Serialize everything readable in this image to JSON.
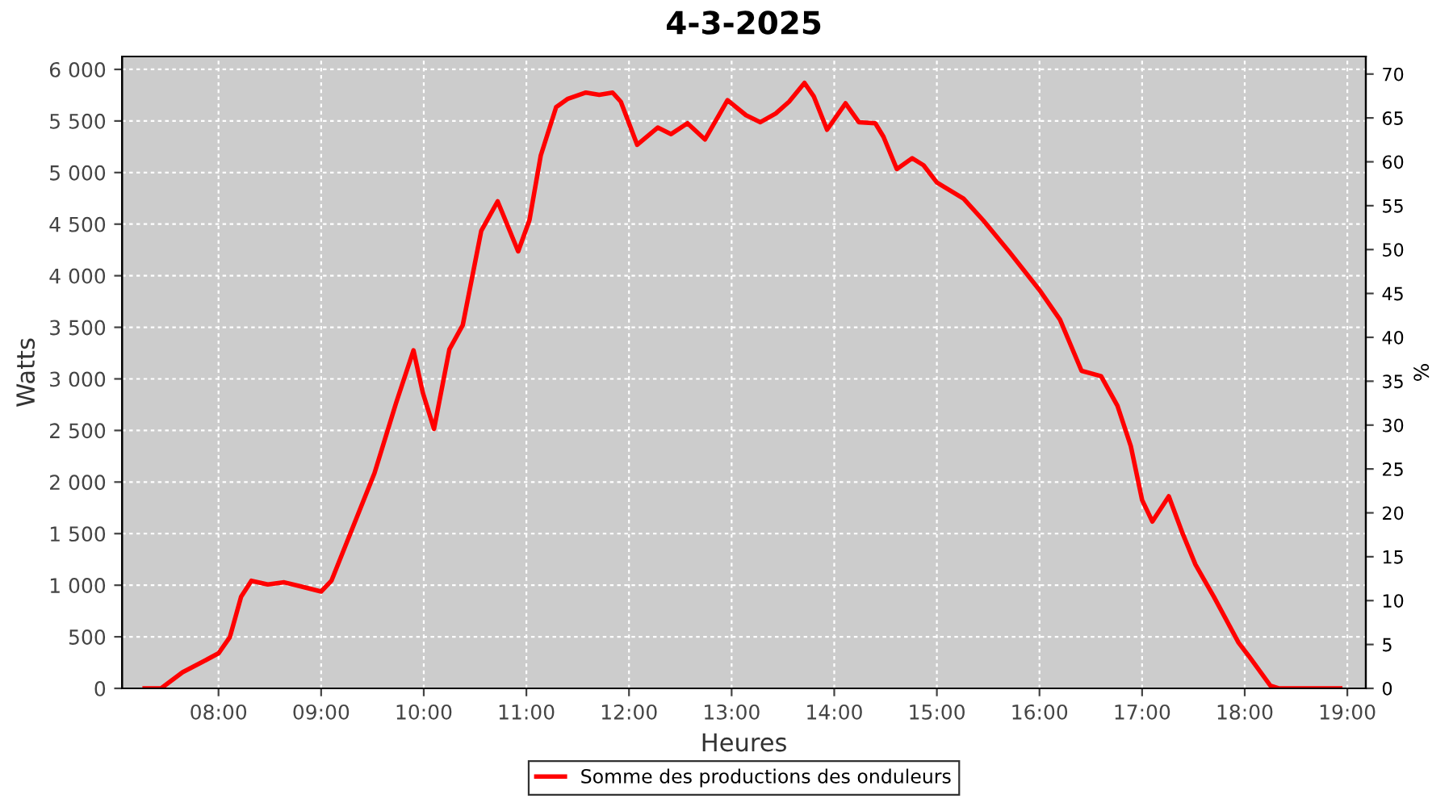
{
  "chart_data": {
    "type": "line",
    "title": "4-3-2025",
    "xlabel": "Heures",
    "ylabel": "Watts",
    "y2label": "%",
    "xlim": [
      7.06,
      19.18
    ],
    "xticks": [
      {
        "value": 8,
        "label": "08:00"
      },
      {
        "value": 9,
        "label": "09:00"
      },
      {
        "value": 10,
        "label": "10:00"
      },
      {
        "value": 11,
        "label": "11:00"
      },
      {
        "value": 12,
        "label": "12:00"
      },
      {
        "value": 13,
        "label": "13:00"
      },
      {
        "value": 14,
        "label": "14:00"
      },
      {
        "value": 15,
        "label": "15:00"
      },
      {
        "value": 16,
        "label": "16:00"
      },
      {
        "value": 17,
        "label": "17:00"
      },
      {
        "value": 18,
        "label": "18:00"
      },
      {
        "value": 19,
        "label": "19:00"
      }
    ],
    "ylim": [
      0,
      6125
    ],
    "yticks": [
      0,
      500,
      {
        "value": 1000,
        "label": "1 000"
      },
      {
        "value": 1500,
        "label": "1 500"
      },
      {
        "value": 2000,
        "label": "2 000"
      },
      {
        "value": 2500,
        "label": "2 500"
      },
      {
        "value": 3000,
        "label": "3 000"
      },
      {
        "value": 3500,
        "label": "3 500"
      },
      {
        "value": 4000,
        "label": "4 000"
      },
      {
        "value": 4500,
        "label": "4 500"
      },
      {
        "value": 5000,
        "label": "5 000"
      },
      {
        "value": 5500,
        "label": "5 500"
      },
      {
        "value": 6000,
        "label": "6 000"
      }
    ],
    "y2lim": [
      0,
      72
    ],
    "y2ticks": [
      0,
      5,
      10,
      15,
      20,
      25,
      30,
      35,
      40,
      45,
      50,
      55,
      60,
      65,
      70
    ],
    "grid": true,
    "legend": "bottom",
    "marker": "none",
    "line_style": "solid",
    "series": [
      {
        "name": "Somme des productions des onduleurs",
        "color": "#ff0000",
        "x": [
          7.28,
          7.44,
          7.65,
          7.85,
          8.0,
          8.11,
          8.22,
          8.32,
          8.48,
          8.64,
          8.79,
          9.0,
          9.1,
          9.31,
          9.52,
          9.73,
          9.9,
          9.99,
          10.1,
          10.25,
          10.38,
          10.56,
          10.72,
          10.92,
          11.03,
          11.14,
          11.29,
          11.4,
          11.58,
          11.71,
          11.84,
          11.92,
          12.08,
          12.28,
          12.41,
          12.57,
          12.74,
          12.96,
          13.14,
          13.28,
          13.43,
          13.56,
          13.71,
          13.8,
          13.93,
          14.11,
          14.24,
          14.4,
          14.48,
          14.61,
          14.76,
          14.87,
          15.0,
          15.26,
          15.45,
          15.71,
          16.0,
          16.2,
          16.41,
          16.6,
          16.76,
          16.89,
          17.0,
          17.1,
          17.26,
          17.39,
          17.52,
          17.7,
          17.94,
          18.04,
          18.25,
          18.33,
          18.93
        ],
        "values": [
          0,
          0,
          157,
          260,
          340,
          495,
          887,
          1043,
          1007,
          1028,
          991,
          939,
          1043,
          1565,
          2087,
          2765,
          3276,
          2869,
          2515,
          3287,
          3521,
          4434,
          4721,
          4236,
          4539,
          5165,
          5634,
          5713,
          5775,
          5754,
          5775,
          5687,
          5269,
          5436,
          5373,
          5478,
          5321,
          5702,
          5556,
          5488,
          5572,
          5687,
          5869,
          5739,
          5415,
          5671,
          5488,
          5478,
          5347,
          5034,
          5139,
          5071,
          4904,
          4747,
          4539,
          4226,
          3861,
          3574,
          3078,
          3026,
          2739,
          2348,
          1826,
          1617,
          1862,
          1513,
          1200,
          887,
          443,
          313,
          26,
          0,
          0
        ]
      }
    ]
  }
}
